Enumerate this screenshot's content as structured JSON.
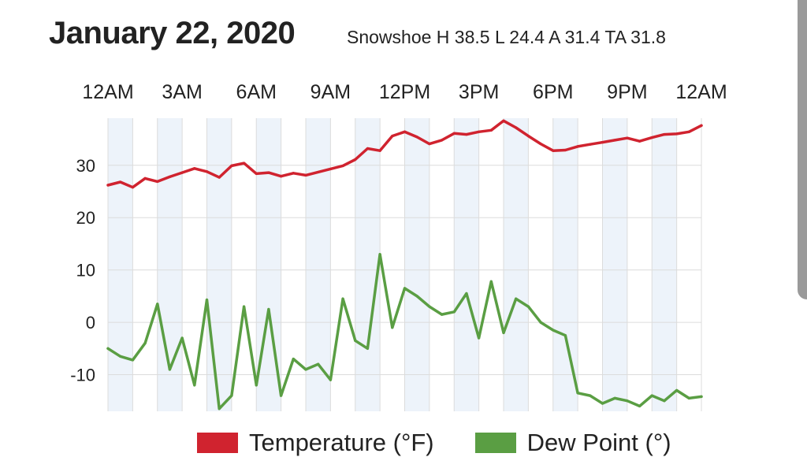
{
  "header": {
    "date": "January 22, 2020",
    "summary": "Snowshoe H 38.5 L 24.4 A 31.4 TA 31.8"
  },
  "colors": {
    "temperature": "#d0232f",
    "dew_point": "#5a9e43",
    "stripe": "#edf3fa",
    "grid": "#dcdcdc"
  },
  "chart_data": {
    "type": "line",
    "title": "January 22, 2020",
    "xlabel": "",
    "ylabel": "",
    "x_ticks": [
      "12AM",
      "3AM",
      "6AM",
      "9AM",
      "12PM",
      "3PM",
      "6PM",
      "9PM",
      "12AM"
    ],
    "x_range_hours": [
      0,
      24
    ],
    "y_ticks": [
      30,
      20,
      10,
      0,
      -10
    ],
    "ylim": [
      -17,
      39
    ],
    "legend": "bottom",
    "series": [
      {
        "name": "Temperature (°F)",
        "key": "temperature",
        "hours": [
          0,
          0.5,
          1,
          1.5,
          2,
          2.5,
          3,
          3.5,
          4,
          4.5,
          5,
          5.5,
          6,
          6.5,
          7,
          7.5,
          8,
          8.5,
          9,
          9.5,
          10,
          10.5,
          11,
          11.5,
          12,
          12.5,
          13,
          13.5,
          14,
          14.5,
          15,
          15.5,
          16,
          16.5,
          17,
          17.5,
          18,
          18.5,
          19,
          19.5,
          20,
          20.5,
          21,
          21.5,
          22,
          22.5,
          23,
          23.5,
          24
        ],
        "values": [
          26.2,
          26.8,
          25.8,
          27.5,
          26.9,
          27.8,
          28.6,
          29.4,
          28.8,
          27.7,
          29.9,
          30.4,
          28.4,
          28.6,
          27.9,
          28.5,
          28.1,
          28.7,
          29.3,
          29.9,
          31.1,
          33.2,
          32.8,
          35.6,
          36.4,
          35.4,
          34.1,
          34.8,
          36.1,
          35.9,
          36.4,
          36.7,
          38.5,
          37.2,
          35.6,
          34.1,
          32.8,
          32.9,
          33.6,
          34.0,
          34.4,
          34.8,
          35.2,
          34.6,
          35.3,
          35.9,
          36.0,
          36.4,
          37.6
        ]
      },
      {
        "name": "Dew Point (°)",
        "key": "dew_point",
        "hours": [
          0,
          0.5,
          1,
          1.5,
          2,
          2.5,
          3,
          3.5,
          4,
          4.5,
          5,
          5.5,
          6,
          6.5,
          7,
          7.5,
          8,
          8.5,
          9,
          9.5,
          10,
          10.5,
          11,
          11.5,
          12,
          12.5,
          13,
          13.5,
          14,
          14.5,
          15,
          15.5,
          16,
          16.5,
          17,
          17.5,
          18,
          18.5,
          19,
          19.5,
          20,
          20.5,
          21,
          21.5,
          22,
          22.5,
          23,
          23.5,
          24
        ],
        "values": [
          -5.0,
          -6.5,
          -7.2,
          -4.0,
          3.5,
          -9.0,
          -3.0,
          -12.0,
          4.3,
          -16.5,
          -14.0,
          3.0,
          -12.0,
          2.5,
          -14.0,
          -7.0,
          -9.0,
          -8.0,
          -11.0,
          4.5,
          -3.5,
          -5.0,
          13.0,
          -1.0,
          6.5,
          5.0,
          3.0,
          1.5,
          2.0,
          5.5,
          -3.0,
          7.8,
          -2.0,
          4.5,
          3.0,
          0.0,
          -1.5,
          -2.5,
          -13.5,
          -14.0,
          -15.5,
          -14.5,
          -15.0,
          -16.0,
          -14.0,
          -15.0,
          -13.0,
          -14.5,
          -14.2
        ]
      }
    ]
  }
}
